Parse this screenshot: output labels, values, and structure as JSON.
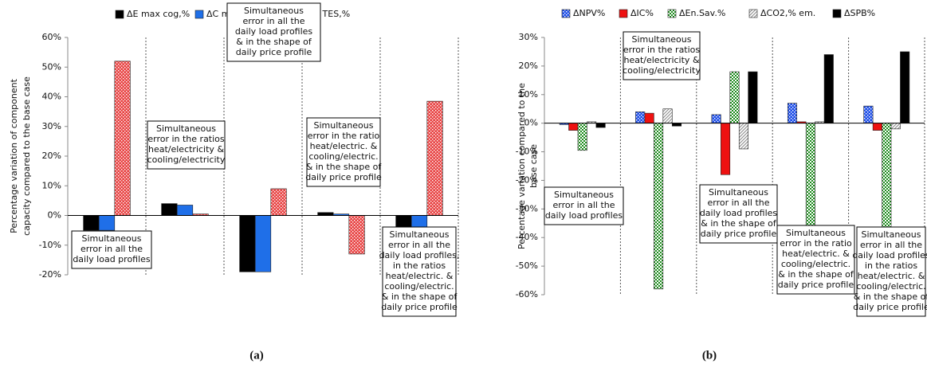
{
  "chart_data": [
    {
      "type": "bar",
      "panel_label": "(a)",
      "y_label": [
        "Percentage variation of component",
        "capacity compared to the base case"
      ],
      "categories": [
        null,
        null,
        null,
        null,
        null
      ],
      "series": [
        {
          "name": "ΔE max cog,%",
          "color": "#000000",
          "values": [
            -5,
            4,
            -19,
            1,
            -4
          ]
        },
        {
          "name": "ΔC max abs,%",
          "color": "#1f6fe8",
          "values": [
            -5,
            3.5,
            -19,
            0.5,
            -5
          ]
        },
        {
          "name": "ΔV TES,%",
          "color": "#e84545",
          "pattern": "dots",
          "values": [
            52,
            0.5,
            9,
            -13,
            38.5
          ]
        }
      ],
      "ylim": [
        -20,
        60
      ],
      "yticks": [
        {
          "value": -20,
          "label": "-20%"
        },
        {
          "value": -10,
          "label": "-10%"
        },
        {
          "value": 0,
          "label": "0%"
        },
        {
          "value": 10,
          "label": "10%"
        },
        {
          "value": 20,
          "label": "20%"
        },
        {
          "value": 30,
          "label": "30%"
        },
        {
          "value": 40,
          "label": "40%"
        },
        {
          "value": 50,
          "label": "50%"
        },
        {
          "value": 60,
          "label": "60%"
        }
      ],
      "annotations": [
        [
          "Simultaneous",
          "error in all the",
          "daily load profiles"
        ],
        [
          "Simultaneous",
          "error in the ratios",
          "heat/electricity &",
          "cooling/electricity"
        ],
        [
          "Simultaneous",
          "error in all the",
          "daily load profiles",
          "& in the shape of",
          "daily price profile"
        ],
        [
          "Simultaneous",
          "error in the ratio",
          "heat/electric. &",
          "cooling/electric.",
          "& in the shape of",
          "daily price profile"
        ],
        [
          "Simultaneous",
          "error in all the",
          "daily load profiles,",
          "in the ratios",
          "heat/electric. &",
          "cooling/electric.",
          "& in the shape of",
          "daily price profile"
        ]
      ]
    },
    {
      "type": "bar",
      "panel_label": "(b)",
      "y_label": [
        "Percentage variation compared to the",
        "base case"
      ],
      "categories": [
        null,
        null,
        null,
        null,
        null
      ],
      "series": [
        {
          "name": "ΔNPV%",
          "color": "#1f4fe8",
          "pattern": "dots",
          "values": [
            -0.5,
            4,
            3,
            7,
            6
          ]
        },
        {
          "name": "ΔIC%",
          "color": "#ee1111",
          "values": [
            -2.5,
            3.5,
            -18,
            0.5,
            -2.5
          ]
        },
        {
          "name": "ΔEn.Sav.%",
          "color": "#1a8a1a",
          "pattern": "checker",
          "values": [
            -9.5,
            -58,
            18,
            -40.5,
            -45
          ]
        },
        {
          "name": "ΔCO2,% em.",
          "color": "#888888",
          "pattern": "hatch",
          "values": [
            0.5,
            5,
            -9,
            0.5,
            -2
          ]
        },
        {
          "name": "ΔSPB%",
          "color": "#000000",
          "values": [
            -1.5,
            -1,
            18,
            24,
            25
          ]
        }
      ],
      "ylim": [
        -60,
        30
      ],
      "yticks": [
        {
          "value": -60,
          "label": "-60%"
        },
        {
          "value": -50,
          "label": "-50%"
        },
        {
          "value": -40,
          "label": "-40%"
        },
        {
          "value": -30,
          "label": "-30%"
        },
        {
          "value": -20,
          "label": "-20%"
        },
        {
          "value": -10,
          "label": "-10%"
        },
        {
          "value": 0,
          "label": "0%"
        },
        {
          "value": 10,
          "label": "10%"
        },
        {
          "value": 20,
          "label": "20%"
        },
        {
          "value": 30,
          "label": "30%"
        }
      ],
      "annotations": [
        [
          "Simultaneous",
          "error in all the",
          "daily load profiles"
        ],
        [
          "Simultaneous",
          "error in the ratios",
          "heat/electricity &",
          "cooling/electricity"
        ],
        [
          "Simultaneous",
          "error in all the",
          "daily load profiles",
          "& in the shape of",
          "daily price profile"
        ],
        [
          "Simultaneous",
          "error in the ratio",
          "heat/electric. &",
          "cooling/electric.",
          "& in the shape of",
          "daily price profile"
        ],
        [
          "Simultaneous",
          "error in all the",
          "daily load profiles",
          "in the ratios",
          "heat/electric. &",
          "cooling/electric.",
          "& in the shape of",
          "daily price profile"
        ]
      ]
    }
  ]
}
